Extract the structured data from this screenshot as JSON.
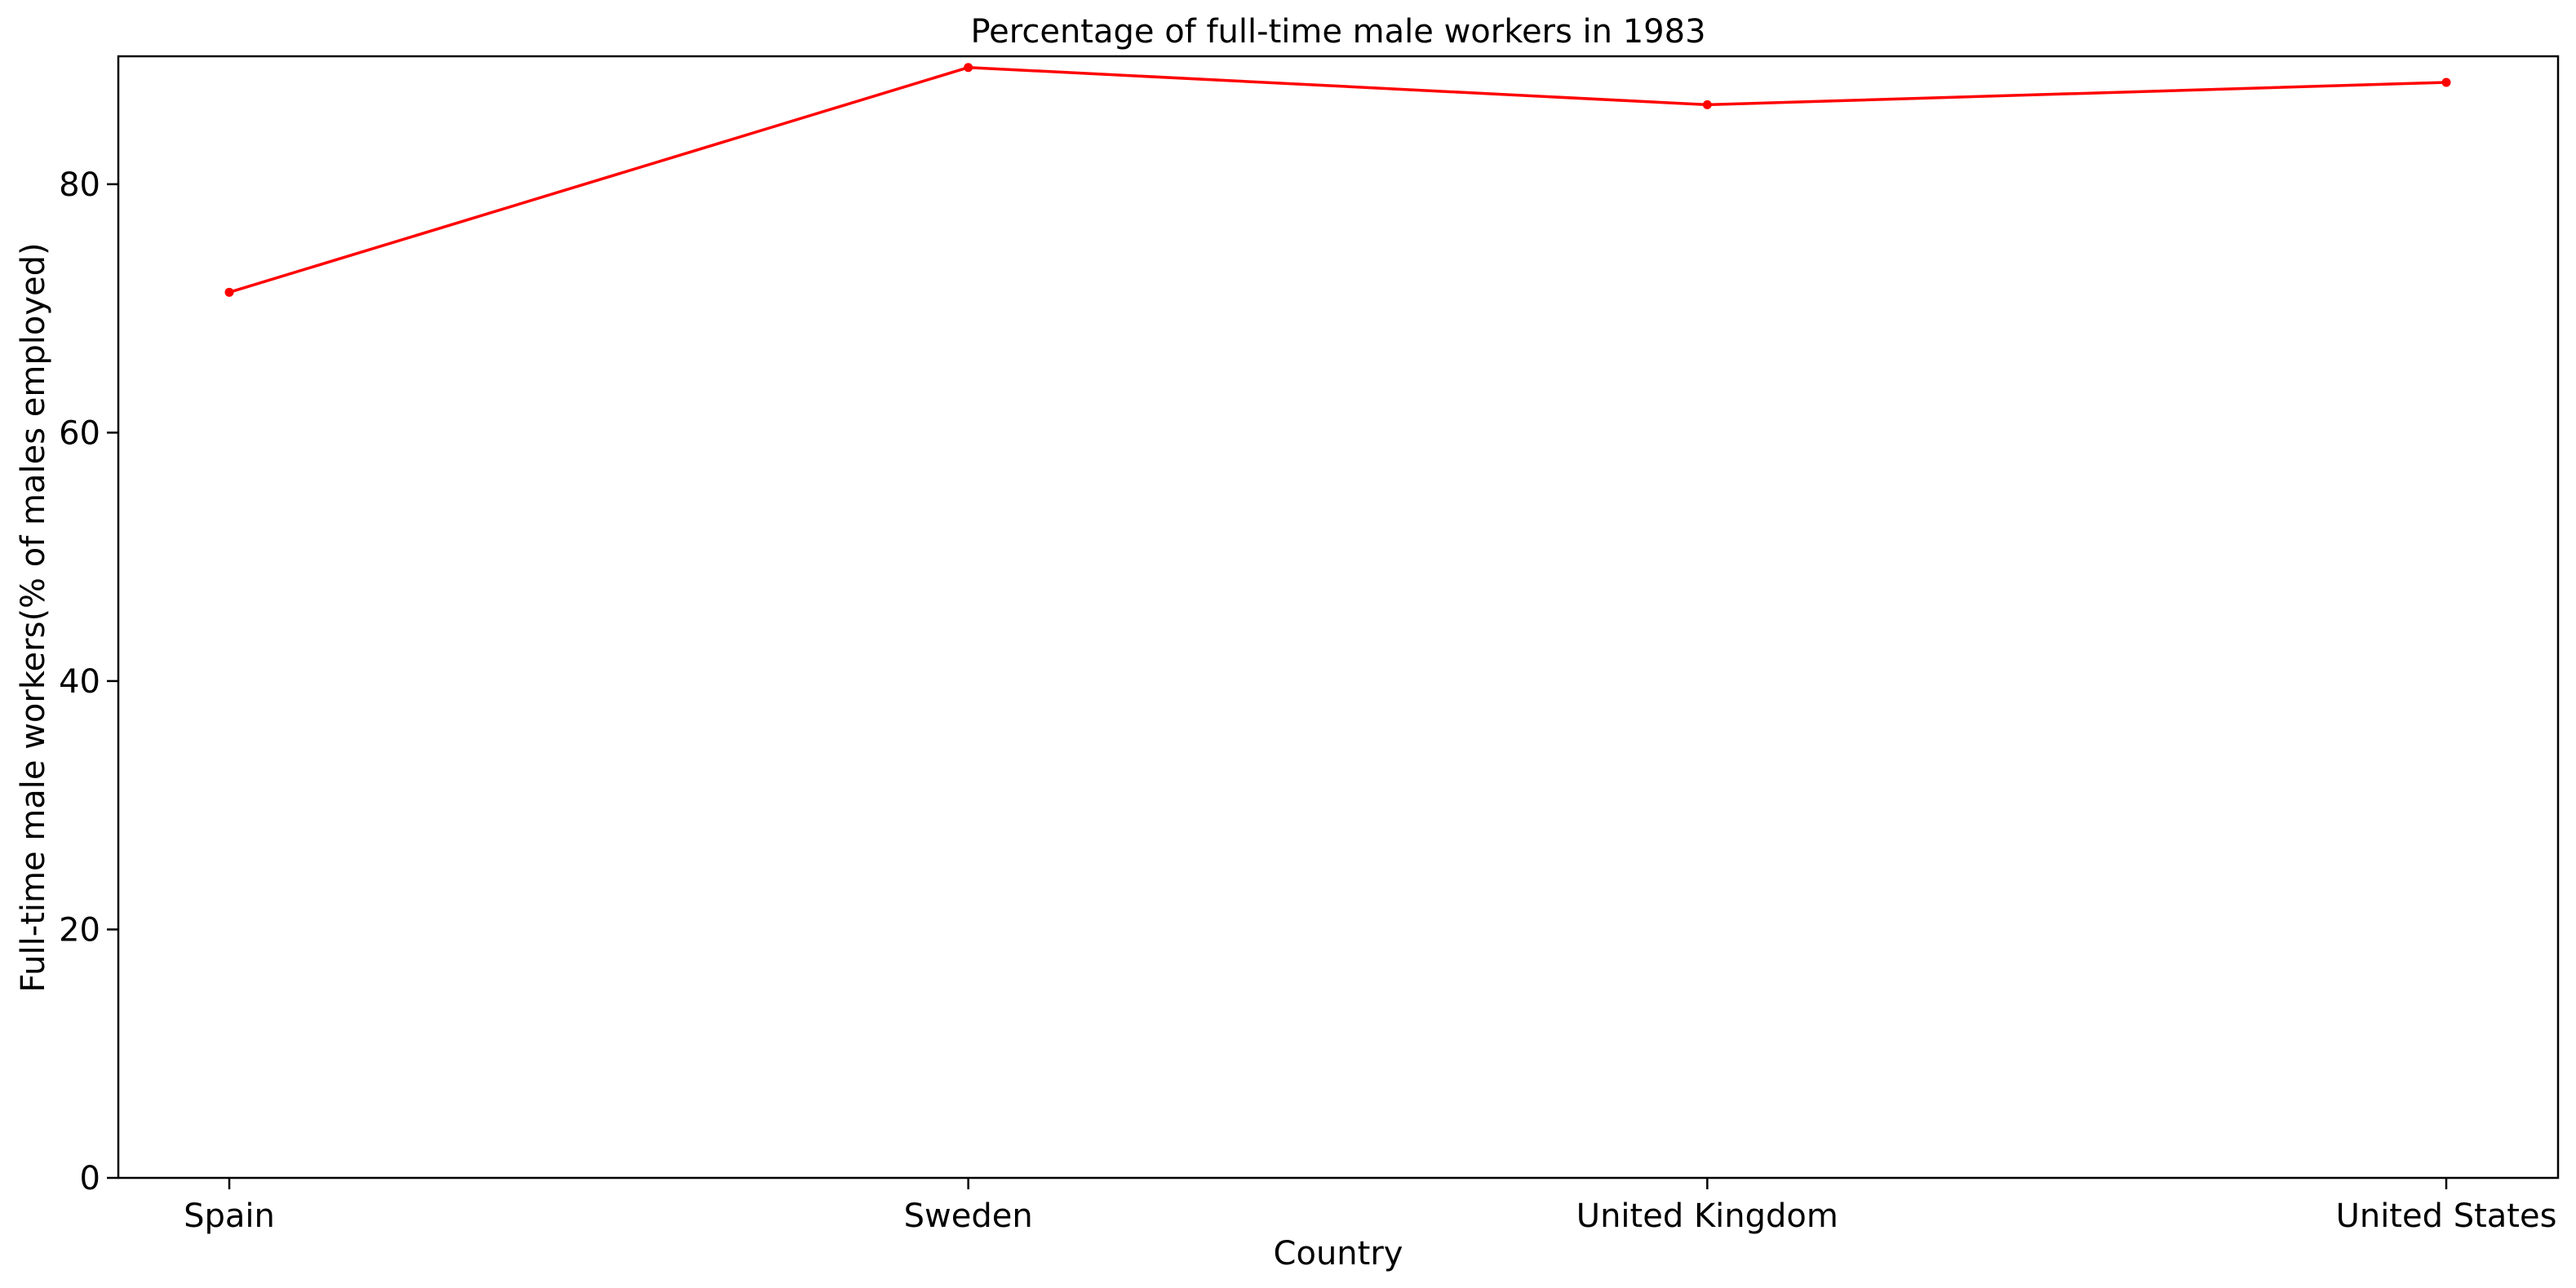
{
  "chart_data": {
    "type": "line",
    "title": "Percentage of full-time male workers in 1983",
    "xlabel": "Country",
    "ylabel": "Full-time male workers(% of males employed)",
    "categories": [
      "Spain",
      "Sweden",
      "United Kingdom",
      "United States"
    ],
    "series": [
      {
        "values": [
          71.3,
          89.4,
          86.4,
          88.2
        ],
        "color": "#ff0000",
        "marker": "circle"
      }
    ],
    "ylim": [
      0,
      90.3
    ],
    "yticks": [
      0,
      20,
      40,
      60,
      80
    ],
    "grid": false,
    "legend": "none"
  }
}
